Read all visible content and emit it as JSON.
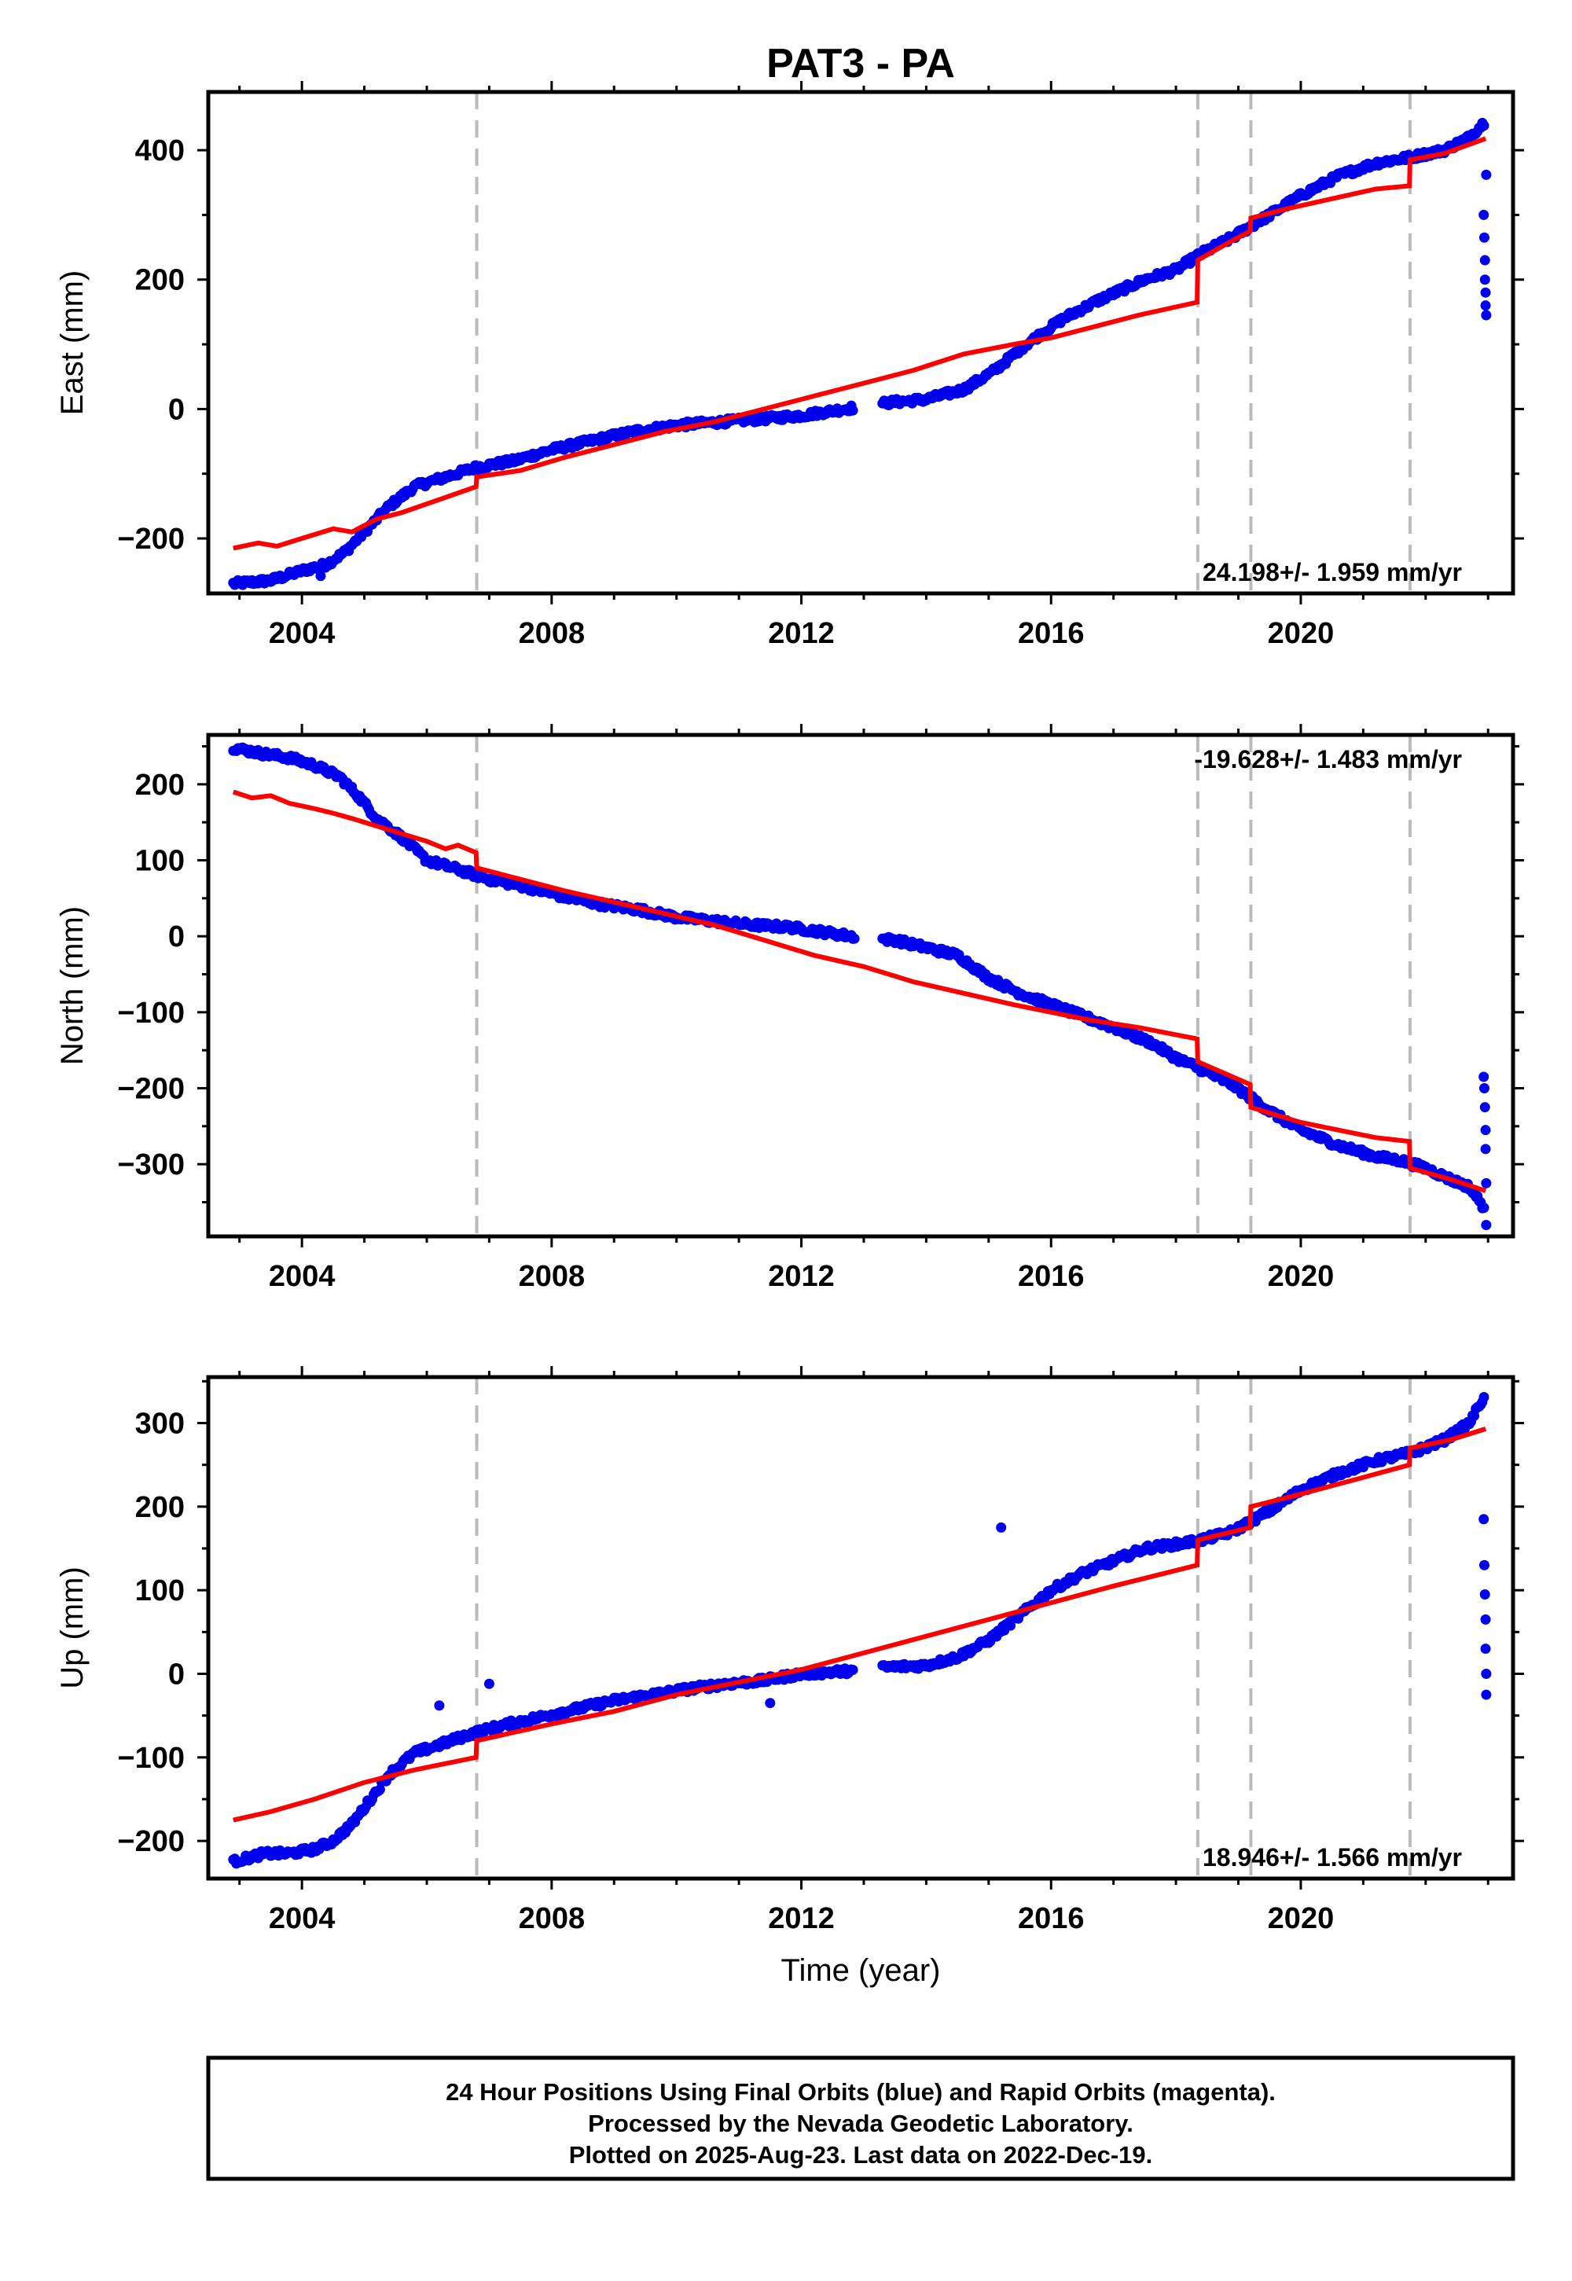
{
  "title": "PAT3 - PA",
  "xlabel": "Time (year)",
  "footer": {
    "line1": "24 Hour Positions Using Final Orbits (blue) and Rapid Orbits (magenta).",
    "line2": "Processed by the Nevada Geodetic Laboratory.",
    "line3": "Plotted on 2025-Aug-23. Last data on 2022-Dec-19."
  },
  "colors": {
    "data": "#0000ee",
    "model": "#ff0000",
    "steps": "#bbbbbb",
    "frame": "#000000"
  },
  "chart_data": [
    {
      "type": "scatter",
      "name": "east",
      "ylabel": "East (mm)",
      "rate_text": "24.198+/- 1.959 mm/yr",
      "rate_position": "bottom-right",
      "xlim": [
        2002.5,
        2023.4
      ],
      "ylim": [
        -285,
        490
      ],
      "x_ticks": [
        2004,
        2008,
        2012,
        2016,
        2020
      ],
      "y_ticks": [
        -200,
        0,
        200,
        400
      ],
      "step_lines": [
        2006.8,
        2018.35,
        2019.2,
        2021.75
      ],
      "series": [
        {
          "role": "data",
          "x": [
            2002.9,
            2003.5,
            2004.0,
            2004.4,
            2004.7,
            2005.1,
            2005.4,
            2005.8,
            2006.3,
            2006.8,
            2007.4,
            2008.0,
            2008.6,
            2009.3,
            2010.0,
            2010.7,
            2011.4,
            2012.0,
            2012.7,
            2013.4,
            2014.0,
            2014.6,
            2015.1,
            2015.6,
            2016.2,
            2016.8,
            2017.5,
            2018.0,
            2018.4,
            2018.9,
            2019.5,
            2020.0,
            2020.6,
            2021.2,
            2021.8,
            2022.3,
            2022.7,
            2022.96
          ],
          "y": [
            -270,
            -265,
            -250,
            -240,
            -220,
            -180,
            -150,
            -120,
            -105,
            -90,
            -80,
            -63,
            -50,
            -35,
            -25,
            -20,
            -15,
            -10,
            0,
            10,
            15,
            30,
            60,
            100,
            140,
            170,
            200,
            215,
            240,
            265,
            300,
            330,
            360,
            380,
            390,
            400,
            420,
            445
          ]
        },
        {
          "role": "outliers",
          "x": [
            2004.3,
            2022.93,
            2022.94,
            2022.95,
            2022.95,
            2022.96,
            2022.96,
            2022.97,
            2022.97
          ],
          "y": [
            -258,
            300,
            265,
            230,
            200,
            180,
            160,
            145,
            362
          ]
        },
        {
          "role": "model",
          "x": [
            2002.9,
            2003.3,
            2003.6,
            2004.0,
            2004.5,
            2004.8,
            2005.2,
            2005.6,
            2006.2,
            2006.79,
            2006.8,
            2007.5,
            2008.2,
            2009.0,
            2009.8,
            2010.6,
            2011.4,
            2012.2,
            2013.0,
            2013.8,
            2014.6,
            2015.4,
            2016.0,
            2016.6,
            2017.4,
            2018.34,
            2018.35,
            2018.9,
            2019.19,
            2019.2,
            2019.8,
            2020.5,
            2021.2,
            2021.74,
            2021.75,
            2022.3,
            2022.96
          ],
          "y": [
            -215,
            -207,
            -212,
            -200,
            -185,
            -190,
            -170,
            -160,
            -140,
            -120,
            -105,
            -95,
            -75,
            -55,
            -35,
            -20,
            0,
            20,
            40,
            60,
            85,
            100,
            110,
            125,
            145,
            165,
            230,
            260,
            275,
            295,
            310,
            325,
            340,
            345,
            385,
            395,
            418
          ]
        }
      ]
    },
    {
      "type": "scatter",
      "name": "north",
      "ylabel": "North (mm)",
      "rate_text": "-19.628+/- 1.483 mm/yr",
      "rate_position": "top-right",
      "xlim": [
        2002.5,
        2023.4
      ],
      "ylim": [
        -395,
        265
      ],
      "x_ticks": [
        2004,
        2008,
        2012,
        2016,
        2020
      ],
      "y_ticks": [
        -300,
        -200,
        -100,
        0,
        100,
        200
      ],
      "step_lines": [
        2006.8,
        2018.35,
        2019.2,
        2021.75
      ],
      "series": [
        {
          "role": "data",
          "x": [
            2002.9,
            2003.4,
            2003.8,
            2004.2,
            2004.6,
            2004.9,
            2005.2,
            2005.6,
            2006.0,
            2006.5,
            2007.0,
            2007.6,
            2008.2,
            2008.8,
            2009.4,
            2010.0,
            2010.6,
            2011.2,
            2011.8,
            2012.4,
            2012.8,
            2013.5,
            2014.0,
            2014.5,
            2015.0,
            2015.5,
            2016.0,
            2016.5,
            2017.0,
            2017.6,
            2018.0,
            2018.4,
            2018.9,
            2019.5,
            2020.0,
            2020.6,
            2021.2,
            2021.6,
            2022.0,
            2022.4,
            2022.7,
            2022.96
          ],
          "y": [
            248,
            240,
            235,
            225,
            210,
            185,
            155,
            130,
            100,
            88,
            75,
            65,
            52,
            42,
            35,
            25,
            20,
            15,
            12,
            5,
            0,
            -5,
            -15,
            -25,
            -55,
            -75,
            -90,
            -105,
            -120,
            -140,
            -160,
            -175,
            -195,
            -230,
            -255,
            -275,
            -290,
            -295,
            -305,
            -320,
            -330,
            -360
          ]
        },
        {
          "role": "outliers",
          "x": [
            2022.93,
            2022.94,
            2022.95,
            2022.96,
            2022.96,
            2022.97,
            2022.97
          ],
          "y": [
            -185,
            -200,
            -225,
            -255,
            -280,
            -325,
            -380
          ]
        },
        {
          "role": "model",
          "x": [
            2002.9,
            2003.2,
            2003.5,
            2003.8,
            2004.2,
            2004.5,
            2004.8,
            2005.2,
            2005.6,
            2006.0,
            2006.3,
            2006.5,
            2006.79,
            2006.8,
            2007.5,
            2008.2,
            2009.0,
            2009.8,
            2010.6,
            2011.4,
            2012.2,
            2013.0,
            2013.8,
            2014.6,
            2015.4,
            2016.0,
            2016.6,
            2017.4,
            2018.34,
            2018.35,
            2019.19,
            2019.2,
            2020.0,
            2020.6,
            2021.2,
            2021.74,
            2021.75,
            2022.4,
            2022.96
          ],
          "y": [
            190,
            182,
            185,
            175,
            168,
            162,
            155,
            145,
            135,
            125,
            115,
            120,
            110,
            90,
            75,
            60,
            45,
            30,
            15,
            -5,
            -25,
            -40,
            -60,
            -75,
            -90,
            -100,
            -110,
            -120,
            -135,
            -165,
            -195,
            -225,
            -245,
            -255,
            -265,
            -270,
            -305,
            -320,
            -335
          ]
        }
      ]
    },
    {
      "type": "scatter",
      "name": "up",
      "ylabel": "Up (mm)",
      "rate_text": "18.946+/- 1.566 mm/yr",
      "rate_position": "bottom-right",
      "xlim": [
        2002.5,
        2023.4
      ],
      "ylim": [
        -245,
        355
      ],
      "x_ticks": [
        2004,
        2008,
        2012,
        2016,
        2020
      ],
      "y_ticks": [
        -200,
        -100,
        0,
        100,
        200,
        300
      ],
      "step_lines": [
        2006.8,
        2018.35,
        2019.2,
        2021.75
      ],
      "series": [
        {
          "role": "data",
          "x": [
            2002.9,
            2003.4,
            2003.8,
            2004.2,
            2004.5,
            2004.8,
            2005.1,
            2005.4,
            2005.8,
            2006.2,
            2006.7,
            2007.2,
            2007.8,
            2008.4,
            2009.0,
            2009.6,
            2010.2,
            2010.8,
            2011.4,
            2012.0,
            2012.7,
            2013.4,
            2014.0,
            2014.5,
            2015.0,
            2015.5,
            2016.0,
            2016.5,
            2017.0,
            2017.5,
            2018.0,
            2018.4,
            2018.9,
            2019.5,
            2020.0,
            2020.6,
            2021.2,
            2021.8,
            2022.3,
            2022.7,
            2022.96
          ],
          "y": [
            -225,
            -215,
            -215,
            -210,
            -200,
            -180,
            -150,
            -120,
            -95,
            -85,
            -72,
            -62,
            -52,
            -42,
            -32,
            -25,
            -18,
            -12,
            -8,
            0,
            3,
            8,
            10,
            20,
            40,
            70,
            100,
            120,
            135,
            150,
            155,
            160,
            170,
            195,
            220,
            240,
            255,
            265,
            280,
            300,
            335
          ]
        },
        {
          "role": "outliers",
          "x": [
            2006.2,
            2007.0,
            2011.5,
            2015.2,
            2022.93,
            2022.94,
            2022.95,
            2022.96,
            2022.96,
            2022.97,
            2022.97
          ],
          "y": [
            -38,
            -12,
            -35,
            175,
            185,
            130,
            95,
            65,
            30,
            0,
            -25
          ]
        },
        {
          "role": "model",
          "x": [
            2002.9,
            2003.5,
            2004.2,
            2005.0,
            2005.8,
            2006.79,
            2006.8,
            2008.0,
            2009.0,
            2010.0,
            2011.0,
            2012.0,
            2013.0,
            2014.0,
            2015.0,
            2016.0,
            2017.0,
            2018.34,
            2018.35,
            2019.19,
            2019.2,
            2020.0,
            2021.0,
            2021.74,
            2021.75,
            2022.4,
            2022.96
          ],
          "y": [
            -175,
            -165,
            -150,
            -130,
            -115,
            -100,
            -80,
            -60,
            -45,
            -25,
            -10,
            5,
            25,
            45,
            65,
            85,
            105,
            130,
            160,
            175,
            200,
            215,
            235,
            250,
            270,
            280,
            293
          ]
        }
      ]
    }
  ]
}
